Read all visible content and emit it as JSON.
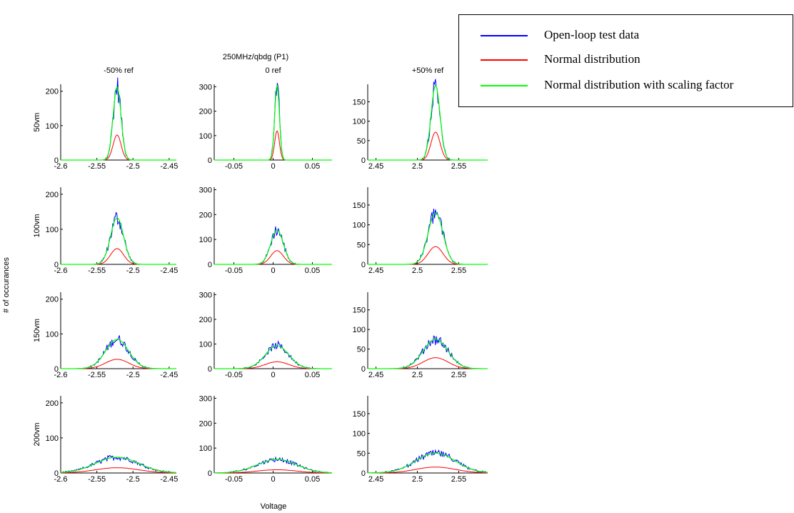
{
  "figure": {
    "title_line1": "250MHz/qbdg    (P1)",
    "ylabel": "# of occurances",
    "xlabel": "Voltage"
  },
  "legend": {
    "entries": [
      {
        "label": "Open-loop test data",
        "color": "#0000ff"
      },
      {
        "label": "Normal distribution",
        "color": "#ff0000"
      },
      {
        "label": "Normal distribution with scaling factor",
        "color": "#00ff00"
      }
    ]
  },
  "chart_data": {
    "type": "line",
    "columns": [
      {
        "title": "-50% ref",
        "xlim": [
          -2.6,
          -2.44
        ],
        "xticks": [
          -2.6,
          -2.55,
          -2.5,
          -2.45
        ],
        "xtick_labels": [
          "-2.6",
          "-2.55",
          "-2.5",
          "-2.45"
        ],
        "mu": -2.522
      },
      {
        "title": "0 ref",
        "xlim": [
          -0.075,
          0.075
        ],
        "xticks": [
          -0.05,
          0,
          0.05
        ],
        "xtick_labels": [
          "-0.05",
          "0",
          "0.05"
        ],
        "mu": 0.005
      },
      {
        "title": "+50% ref",
        "xlim": [
          2.44,
          2.585
        ],
        "xticks": [
          2.45,
          2.5,
          2.55
        ],
        "xtick_labels": [
          "2.45",
          "2.5",
          "2.55"
        ],
        "mu": 2.522
      }
    ],
    "rows": [
      {
        "label": "50vm"
      },
      {
        "label": "100vm"
      },
      {
        "label": "150vm"
      },
      {
        "label": "200vm"
      }
    ],
    "column_ylims": [
      [
        0,
        220
      ],
      [
        0,
        310
      ],
      [
        0,
        195
      ]
    ],
    "column_yticks": [
      [
        0,
        100,
        200
      ],
      [
        0,
        100,
        200,
        300
      ],
      [
        0,
        50,
        100,
        150
      ]
    ],
    "panels": [
      [
        {
          "sigma": 0.0055,
          "normal_peak": 73,
          "scaled_peak": 212
        },
        {
          "sigma": 0.009,
          "normal_peak": 45,
          "scaled_peak": 133
        },
        {
          "sigma": 0.016,
          "normal_peak": 27,
          "scaled_peak": 84
        },
        {
          "sigma": 0.03,
          "normal_peak": 15,
          "scaled_peak": 45
        }
      ],
      [
        {
          "sigma": 0.003,
          "normal_peak": 120,
          "scaled_peak": 305
        },
        {
          "sigma": 0.008,
          "normal_peak": 55,
          "scaled_peak": 138
        },
        {
          "sigma": 0.015,
          "normal_peak": 28,
          "scaled_peak": 93
        },
        {
          "sigma": 0.025,
          "normal_peak": 13,
          "scaled_peak": 55
        }
      ],
      [
        {
          "sigma": 0.0055,
          "normal_peak": 72,
          "scaled_peak": 192
        },
        {
          "sigma": 0.009,
          "normal_peak": 45,
          "scaled_peak": 130
        },
        {
          "sigma": 0.015,
          "normal_peak": 28,
          "scaled_peak": 75
        },
        {
          "sigma": 0.024,
          "normal_peak": 15,
          "scaled_peak": 50
        }
      ]
    ]
  }
}
